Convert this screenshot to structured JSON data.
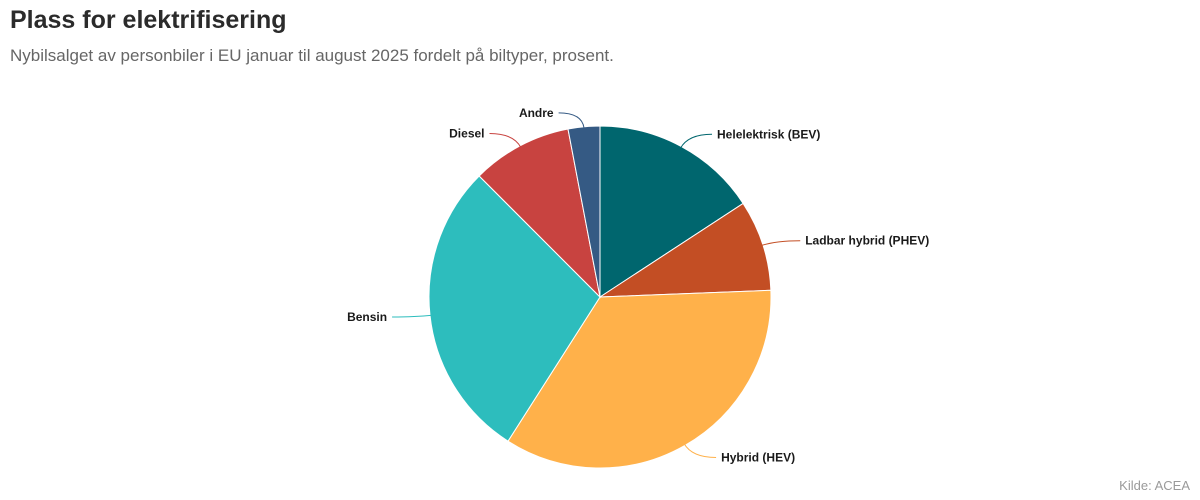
{
  "header": {
    "title": "Plass for elektrifisering",
    "subtitle": "Nybilsalget av personbiler i EU januar til august 2025 fordelt på biltyper, prosent."
  },
  "footer": {
    "source": "Kilde: ACEA"
  },
  "chart_data": {
    "type": "pie",
    "title": "Plass for elektrifisering",
    "subtitle": "Nybilsalget av personbiler i EU januar til august 2025 fordelt på biltyper, prosent.",
    "start_angle_deg": 0,
    "direction": "clockwise",
    "slices": [
      {
        "label": "Helelektrisk (BEV)",
        "value": 15.8,
        "color": "#00666e"
      },
      {
        "label": "Ladbar hybrid (PHEV)",
        "value": 8.6,
        "color": "#c34e24"
      },
      {
        "label": "Hybrid (HEV)",
        "value": 34.7,
        "color": "#ffb14a"
      },
      {
        "label": "Bensin",
        "value": 28.5,
        "color": "#2dbdbd"
      },
      {
        "label": "Diesel",
        "value": 9.5,
        "color": "#c84340"
      },
      {
        "label": "Andre",
        "value": 3.0,
        "color": "#355a84"
      }
    ]
  }
}
